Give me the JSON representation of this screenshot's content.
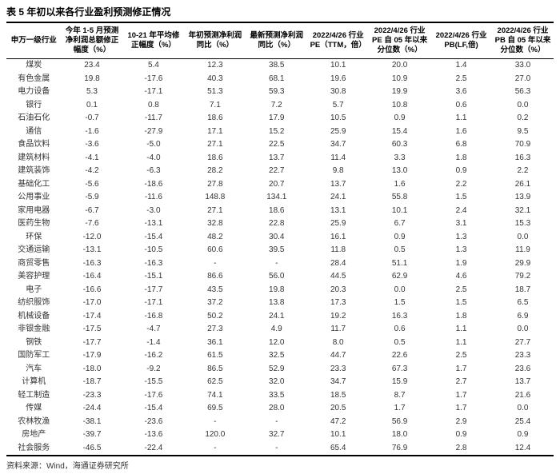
{
  "title": "表 5 年初以来各行业盈利预测修正情况",
  "source": "资料来源：Wind，海通证券研究所",
  "columns": [
    "申万一级行业",
    "今年 1-5 月预测净利润总额修正幅度（%）",
    "10-21 年平均修正幅度（%）",
    "年初预测净利润同比（%）",
    "最新预测净利润同比（%）",
    "2022/4/26 行业PE（TTM，倍）",
    "2022/4/26 行业PE 自 05 年以来分位数（%）",
    "2022/4/26 行业 PB(LF,倍)",
    "2022/4/26 行业PB 自 05 年以来分位数（%）"
  ],
  "rows": [
    [
      "煤炭",
      "23.4",
      "5.4",
      "12.3",
      "38.5",
      "10.1",
      "20.0",
      "1.4",
      "33.0"
    ],
    [
      "有色金属",
      "19.8",
      "-17.6",
      "40.3",
      "68.1",
      "19.6",
      "10.9",
      "2.5",
      "27.0"
    ],
    [
      "电力设备",
      "5.3",
      "-17.1",
      "51.3",
      "59.3",
      "30.8",
      "19.9",
      "3.6",
      "56.3"
    ],
    [
      "银行",
      "0.1",
      "0.8",
      "7.1",
      "7.2",
      "5.7",
      "10.8",
      "0.6",
      "0.0"
    ],
    [
      "石油石化",
      "-0.7",
      "-11.7",
      "18.6",
      "17.9",
      "10.5",
      "0.9",
      "1.1",
      "0.2"
    ],
    [
      "通信",
      "-1.6",
      "-27.9",
      "17.1",
      "15.2",
      "25.9",
      "15.4",
      "1.6",
      "9.5"
    ],
    [
      "食品饮料",
      "-3.6",
      "-5.0",
      "27.1",
      "22.5",
      "34.7",
      "60.3",
      "6.8",
      "70.9"
    ],
    [
      "建筑材料",
      "-4.1",
      "-4.0",
      "18.6",
      "13.7",
      "11.4",
      "3.3",
      "1.8",
      "16.3"
    ],
    [
      "建筑装饰",
      "-4.2",
      "-6.3",
      "28.2",
      "22.7",
      "9.8",
      "13.0",
      "0.9",
      "2.2"
    ],
    [
      "基础化工",
      "-5.6",
      "-18.6",
      "27.8",
      "20.7",
      "13.7",
      "1.6",
      "2.2",
      "26.1"
    ],
    [
      "公用事业",
      "-5.9",
      "-11.6",
      "148.8",
      "134.1",
      "24.1",
      "55.8",
      "1.5",
      "13.9"
    ],
    [
      "家用电器",
      "-6.7",
      "-3.0",
      "27.1",
      "18.6",
      "13.1",
      "10.1",
      "2.4",
      "32.1"
    ],
    [
      "医药生物",
      "-7.6",
      "-13.1",
      "32.8",
      "22.8",
      "25.9",
      "6.7",
      "3.1",
      "15.3"
    ],
    [
      "环保",
      "-12.0",
      "-15.4",
      "48.2",
      "30.4",
      "16.1",
      "0.9",
      "1.3",
      "0.0"
    ],
    [
      "交通运输",
      "-13.1",
      "-10.5",
      "60.6",
      "39.5",
      "11.8",
      "0.5",
      "1.3",
      "11.9"
    ],
    [
      "商贸零售",
      "-16.3",
      "-16.3",
      "-",
      "-",
      "28.4",
      "51.1",
      "1.9",
      "29.9"
    ],
    [
      "美容护理",
      "-16.4",
      "-15.1",
      "86.6",
      "56.0",
      "44.5",
      "62.9",
      "4.6",
      "79.2"
    ],
    [
      "电子",
      "-16.6",
      "-17.7",
      "43.5",
      "19.8",
      "20.3",
      "0.0",
      "2.5",
      "18.7"
    ],
    [
      "纺织服饰",
      "-17.0",
      "-17.1",
      "37.2",
      "13.8",
      "17.3",
      "1.5",
      "1.5",
      "6.5"
    ],
    [
      "机械设备",
      "-17.4",
      "-16.8",
      "50.2",
      "24.1",
      "19.2",
      "16.3",
      "1.8",
      "6.9"
    ],
    [
      "非银金融",
      "-17.5",
      "-4.7",
      "27.3",
      "4.9",
      "11.7",
      "0.6",
      "1.1",
      "0.0"
    ],
    [
      "钢铁",
      "-17.7",
      "-1.4",
      "36.1",
      "12.0",
      "8.0",
      "0.5",
      "1.1",
      "27.7"
    ],
    [
      "国防军工",
      "-17.9",
      "-16.2",
      "61.5",
      "32.5",
      "44.7",
      "22.6",
      "2.5",
      "23.3"
    ],
    [
      "汽车",
      "-18.0",
      "-9.2",
      "86.5",
      "52.9",
      "23.3",
      "67.3",
      "1.7",
      "23.6"
    ],
    [
      "计算机",
      "-18.7",
      "-15.5",
      "62.5",
      "32.0",
      "34.7",
      "15.9",
      "2.7",
      "13.7"
    ],
    [
      "轻工制造",
      "-23.3",
      "-17.6",
      "74.1",
      "33.5",
      "18.5",
      "8.7",
      "1.7",
      "21.6"
    ],
    [
      "传媒",
      "-24.4",
      "-15.4",
      "69.5",
      "28.0",
      "20.5",
      "1.7",
      "1.7",
      "0.0"
    ],
    [
      "农林牧渔",
      "-38.1",
      "-23.6",
      "-",
      "-",
      "47.2",
      "56.9",
      "2.9",
      "25.4"
    ],
    [
      "房地产",
      "-39.7",
      "-13.6",
      "120.0",
      "32.7",
      "10.1",
      "18.0",
      "0.9",
      "0.9"
    ],
    [
      "社会服务",
      "-46.5",
      "-22.4",
      "-",
      "-",
      "65.4",
      "76.9",
      "2.8",
      "12.4"
    ]
  ],
  "style": {
    "title_fontsize": 12,
    "body_fontsize": 10,
    "header_bg": "#ffffff",
    "border_color": "#000000",
    "text_color": "#333333"
  }
}
